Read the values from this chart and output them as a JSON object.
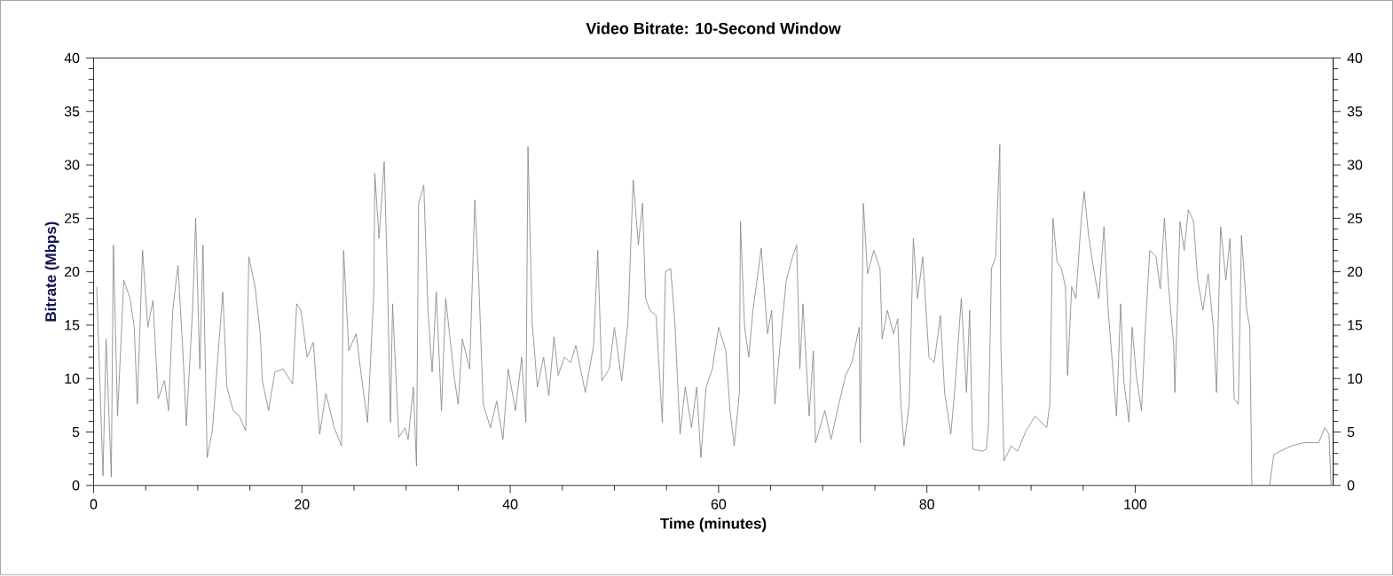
{
  "chart_data": {
    "type": "line",
    "title": "Video Bitrate: 10-Second Window",
    "xlabel": "Time (minutes)",
    "ylabel": "Bitrate (Mbps)",
    "xlim": [
      0,
      119
    ],
    "xticks": [
      0,
      20,
      40,
      60,
      80,
      100
    ],
    "ylim": [
      0,
      40
    ],
    "yticks": [
      0,
      5,
      10,
      15,
      20,
      25,
      30,
      35,
      40
    ],
    "y2lim": [
      0,
      40
    ],
    "y2ticks": [
      0,
      5,
      10,
      15,
      20,
      25,
      30,
      35,
      40
    ],
    "grid": false,
    "legend": false,
    "marker": "none",
    "line_style": "solid",
    "series": [
      {
        "color": "#808080",
        "x": [
          0.3,
          0.9,
          1.2,
          1.7,
          1.9,
          2.3,
          2.9,
          3.5,
          3.9,
          4.2,
          4.7,
          5.2,
          5.7,
          6.2,
          6.8,
          7.2,
          7.6,
          8.1,
          8.6,
          8.9,
          9.5,
          9.8,
          10.2,
          10.5,
          10.9,
          11.4,
          12.1,
          12.4,
          12.8,
          13.4,
          14.0,
          14.6,
          14.9,
          15.5,
          16.0,
          16.2,
          16.8,
          17.4,
          18.2,
          19.1,
          19.5,
          19.9,
          20.5,
          21.1,
          21.7,
          22.3,
          23.1,
          23.8,
          24.0,
          24.5,
          25.2,
          25.7,
          26.3,
          26.9,
          27.0,
          27.4,
          27.9,
          28.2,
          28.5,
          28.7,
          29.3,
          29.9,
          30.2,
          30.7,
          31.0,
          31.2,
          31.7,
          32.1,
          32.5,
          32.9,
          33.4,
          33.8,
          34.6,
          35.0,
          35.4,
          36.1,
          36.6,
          37.0,
          37.4,
          38.1,
          38.7,
          39.3,
          39.8,
          40.5,
          41.1,
          41.5,
          41.7,
          42.1,
          42.6,
          43.2,
          43.7,
          44.2,
          44.6,
          45.2,
          45.8,
          46.3,
          47.2,
          48.0,
          48.4,
          48.8,
          49.5,
          50.0,
          50.7,
          51.3,
          51.8,
          52.3,
          52.7,
          53.0,
          53.4,
          54.0,
          54.6,
          54.9,
          55.4,
          55.8,
          56.3,
          56.8,
          57.4,
          57.9,
          58.3,
          58.8,
          59.4,
          60.0,
          60.7,
          61.1,
          61.5,
          62.0,
          62.1,
          62.5,
          62.9,
          63.3,
          64.1,
          64.7,
          65.1,
          65.4,
          65.9,
          66.5,
          67.1,
          67.5,
          67.8,
          68.1,
          68.7,
          69.1,
          69.3,
          70.2,
          70.8,
          71.4,
          72.2,
          72.8,
          73.5,
          73.6,
          73.9,
          74.3,
          74.9,
          75.5,
          75.7,
          76.2,
          76.8,
          77.2,
          77.5,
          77.8,
          78.3,
          78.7,
          79.1,
          79.6,
          80.2,
          80.7,
          81.3,
          81.7,
          82.3,
          82.7,
          83.3,
          83.8,
          84.1,
          84.4,
          85.3,
          85.7,
          85.9,
          86.2,
          86.6,
          87.0,
          87.1,
          87.4,
          88.1,
          88.7,
          89.5,
          90.4,
          91.5,
          91.8,
          92.1,
          92.5,
          92.9,
          93.3,
          93.5,
          93.9,
          94.3,
          94.8,
          95.1,
          95.5,
          96.0,
          96.5,
          97.0,
          97.4,
          97.9,
          98.2,
          98.6,
          98.9,
          99.4,
          99.7,
          100.1,
          100.6,
          101.0,
          101.4,
          102.0,
          102.4,
          102.8,
          103.2,
          103.7,
          103.8,
          104.3,
          104.7,
          105.1,
          105.6,
          106.0,
          106.5,
          107.0,
          107.5,
          107.8,
          108.2,
          108.7,
          109.1,
          109.5,
          109.9,
          110.2,
          110.7,
          111.0,
          111.2,
          112.9,
          113.3,
          113.9,
          115.0,
          116.2,
          117.6,
          118.2,
          118.6,
          118.8
        ],
        "values": [
          18.6,
          0.9,
          13.7,
          0.8,
          22.5,
          6.5,
          19.2,
          17.5,
          14.8,
          7.6,
          22.0,
          14.8,
          17.3,
          8.1,
          9.8,
          7.0,
          16.4,
          20.6,
          12.0,
          5.6,
          16.4,
          25.0,
          10.9,
          22.5,
          2.6,
          5.1,
          14.2,
          18.1,
          9.2,
          7.0,
          6.5,
          5.1,
          21.4,
          18.6,
          14.2,
          9.8,
          7.0,
          10.6,
          10.9,
          9.5,
          17.0,
          16.4,
          12.0,
          13.4,
          4.8,
          8.6,
          5.4,
          3.7,
          22.0,
          12.6,
          14.2,
          10.3,
          5.9,
          18.1,
          29.2,
          23.1,
          30.3,
          19.8,
          5.9,
          17.0,
          4.5,
          5.4,
          4.3,
          9.2,
          1.8,
          26.4,
          28.1,
          16.4,
          10.6,
          18.1,
          7.0,
          17.5,
          10.3,
          7.6,
          13.7,
          10.9,
          26.7,
          18.6,
          7.6,
          5.4,
          7.9,
          4.3,
          10.9,
          7.0,
          12.0,
          5.9,
          31.7,
          15.3,
          9.2,
          12.0,
          8.4,
          13.9,
          10.3,
          12.0,
          11.5,
          13.1,
          8.7,
          13.1,
          22.0,
          9.8,
          10.9,
          14.8,
          9.8,
          15.3,
          28.6,
          22.5,
          26.4,
          17.5,
          16.4,
          15.9,
          5.9,
          20.0,
          20.3,
          15.3,
          4.8,
          9.2,
          5.4,
          9.2,
          2.6,
          9.2,
          10.9,
          14.8,
          12.6,
          7.0,
          3.7,
          8.7,
          24.7,
          14.8,
          12.0,
          16.4,
          22.2,
          14.2,
          16.4,
          7.6,
          13.1,
          19.2,
          21.4,
          22.5,
          10.9,
          17.0,
          6.5,
          12.6,
          4.0,
          7.0,
          4.3,
          7.0,
          10.3,
          11.5,
          14.8,
          4.0,
          26.4,
          19.8,
          22.0,
          20.3,
          13.7,
          16.4,
          14.2,
          15.6,
          7.6,
          3.7,
          7.6,
          23.1,
          17.5,
          21.4,
          12.0,
          11.5,
          15.9,
          8.7,
          4.8,
          9.2,
          17.5,
          8.7,
          16.4,
          3.4,
          3.2,
          3.4,
          5.4,
          20.3,
          21.4,
          31.9,
          13.1,
          2.3,
          3.7,
          3.2,
          5.1,
          6.5,
          5.4,
          7.6,
          25.0,
          20.9,
          20.3,
          18.6,
          10.3,
          18.6,
          17.5,
          24.7,
          27.5,
          23.6,
          20.3,
          17.5,
          24.2,
          16.4,
          10.3,
          6.5,
          17.0,
          9.8,
          5.9,
          14.8,
          10.3,
          7.0,
          15.3,
          22.0,
          21.4,
          18.4,
          25.0,
          18.6,
          13.1,
          8.7,
          24.7,
          22.0,
          25.8,
          24.7,
          19.2,
          16.4,
          19.8,
          14.8,
          8.7,
          24.2,
          19.2,
          23.1,
          8.1,
          7.6,
          23.4,
          16.4,
          14.8,
          0,
          0,
          2.9,
          3.2,
          3.7,
          4.0,
          4.0,
          5.4,
          4.8,
          0
        ]
      }
    ]
  }
}
